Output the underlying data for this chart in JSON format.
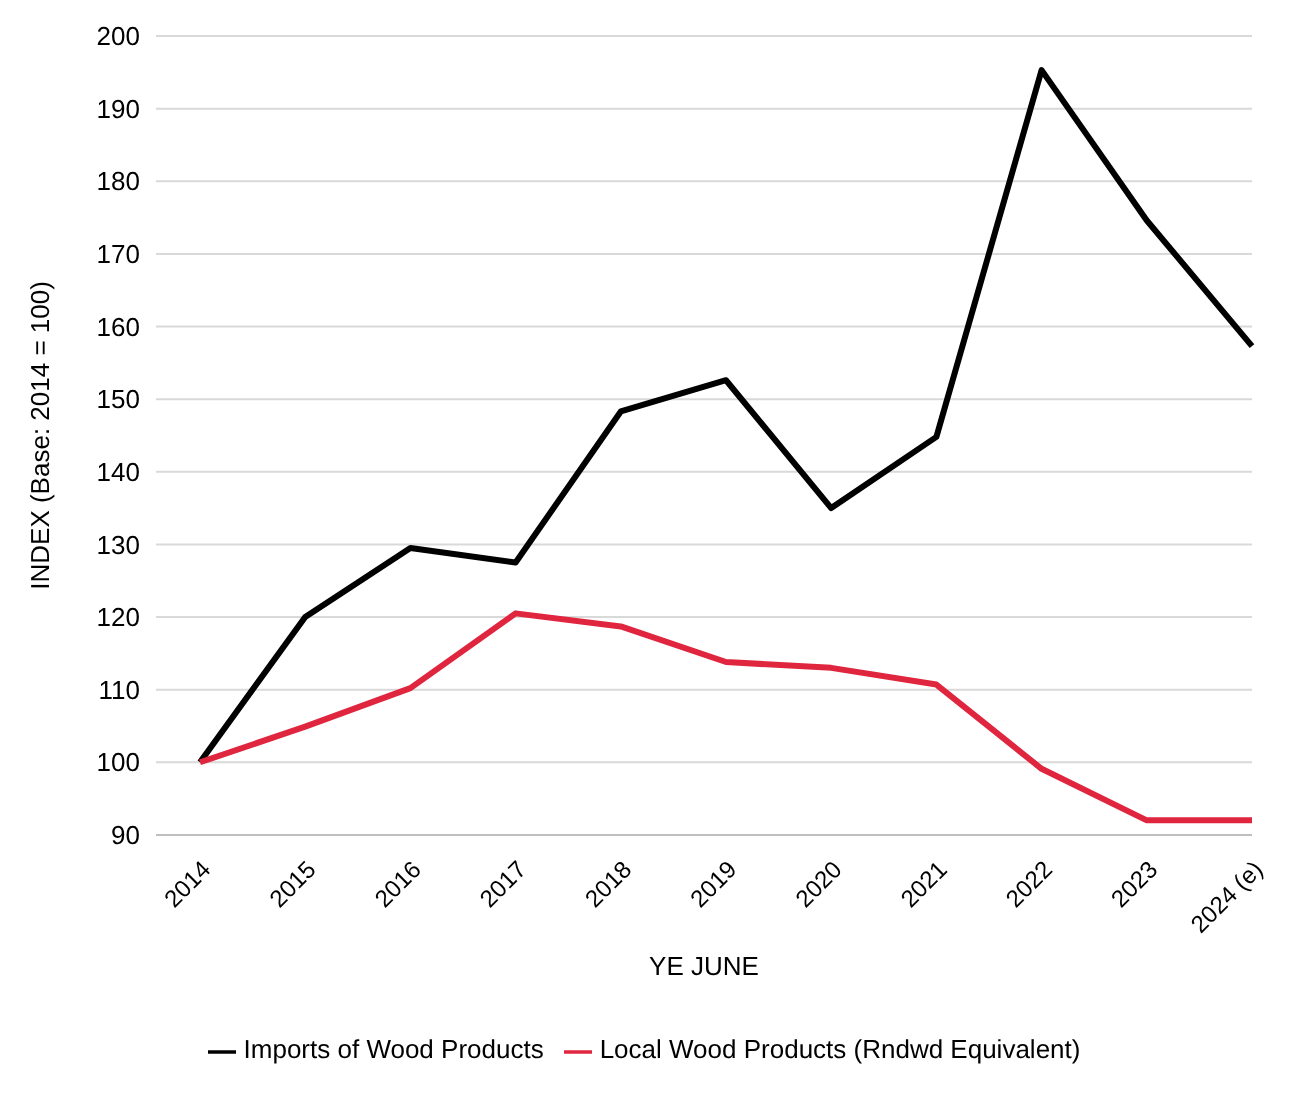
{
  "chart_data": {
    "type": "line",
    "xlabel": "YE JUNE",
    "ylabel": "INDEX (Base: 2014 = 100)",
    "categories": [
      "2014",
      "2015",
      "2016",
      "2017",
      "2018",
      "2019",
      "2020",
      "2021",
      "2022",
      "2023",
      "2024 (e)"
    ],
    "series": [
      {
        "name": "Imports of Wood Products",
        "color": "#000000",
        "values": [
          100,
          120,
          129.5,
          127.5,
          148.3,
          152.6,
          135,
          144.8,
          195.3,
          174.6,
          157.3
        ]
      },
      {
        "name": "Local Wood Products (Rndwd Equivalent)",
        "color": "#e0263f",
        "values": [
          100,
          104.9,
          110.2,
          120.5,
          118.7,
          113.8,
          113,
          110.7,
          99.1,
          92,
          92
        ]
      }
    ],
    "ylim": [
      90,
      200
    ],
    "yticks": [
      90,
      100,
      110,
      120,
      130,
      140,
      150,
      160,
      170,
      180,
      190,
      200
    ],
    "grid": "y",
    "legend": "bottom",
    "marker": "none",
    "line_style": "solid"
  }
}
